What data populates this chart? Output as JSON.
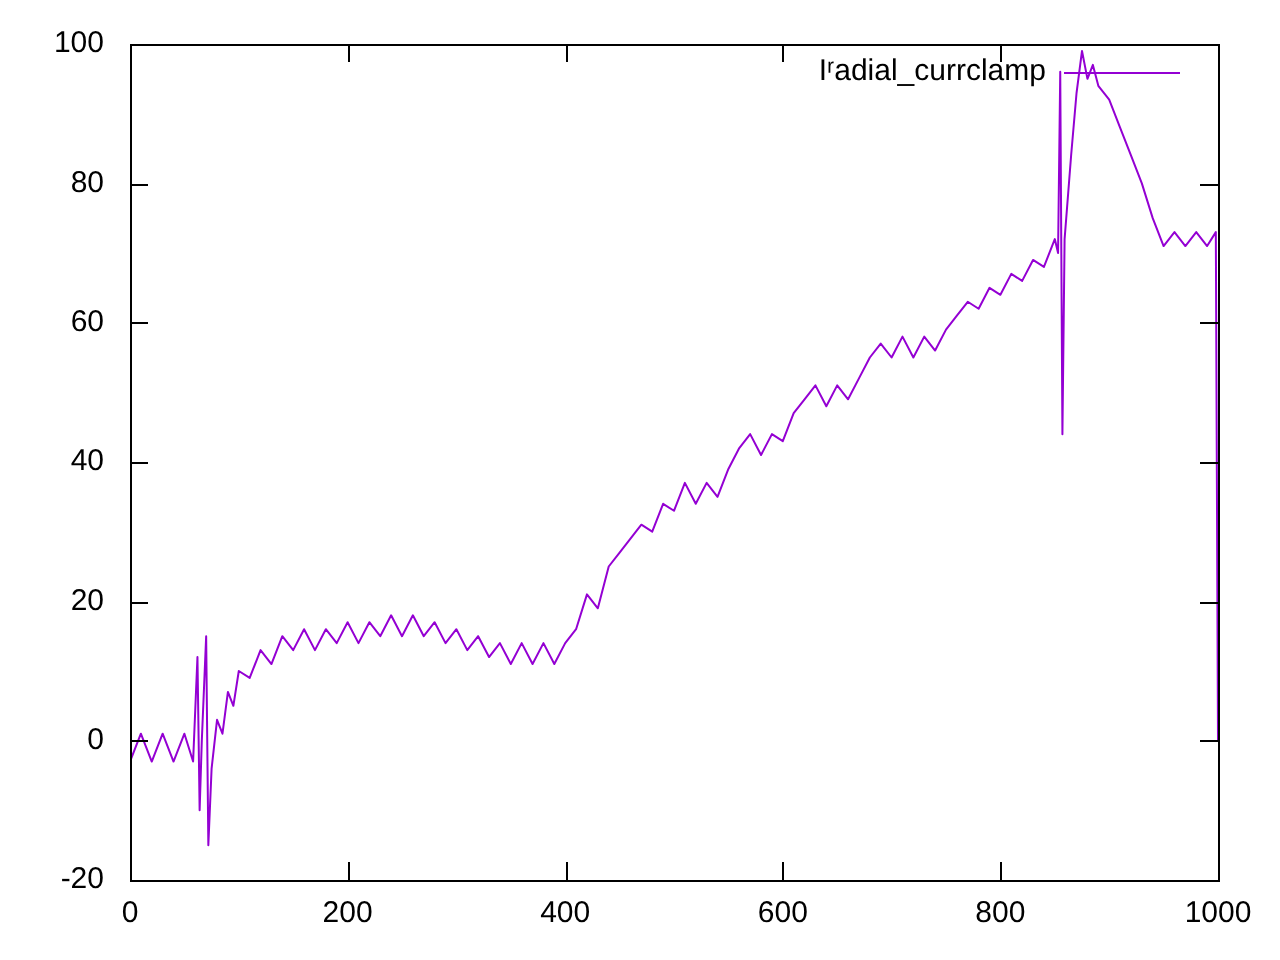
{
  "chart_data": {
    "type": "line",
    "xlim": [
      0,
      1000
    ],
    "xticks": [
      0,
      200,
      400,
      600,
      800,
      1000
    ],
    "ylim": [
      -20,
      100
    ],
    "yticks": [
      -20,
      0,
      20,
      40,
      60,
      80,
      100
    ],
    "grid": false,
    "legend": "top right",
    "marker": "none",
    "line_style": "solid",
    "series": [
      {
        "name": "Iʳadial_currclamp",
        "color": "#9400d3",
        "x": [
          0,
          10,
          20,
          30,
          40,
          50,
          58,
          62,
          64,
          66,
          70,
          72,
          75,
          80,
          85,
          90,
          95,
          100,
          110,
          120,
          130,
          140,
          150,
          160,
          170,
          180,
          190,
          200,
          210,
          220,
          230,
          240,
          250,
          260,
          270,
          280,
          290,
          300,
          310,
          320,
          330,
          340,
          350,
          360,
          370,
          380,
          390,
          400,
          410,
          420,
          430,
          440,
          450,
          460,
          470,
          480,
          490,
          500,
          510,
          520,
          530,
          540,
          550,
          560,
          570,
          580,
          590,
          600,
          610,
          620,
          630,
          640,
          650,
          660,
          670,
          680,
          690,
          700,
          710,
          720,
          730,
          740,
          750,
          760,
          770,
          780,
          790,
          800,
          810,
          820,
          830,
          840,
          850,
          853,
          855,
          857,
          859,
          865,
          870,
          875,
          880,
          885,
          890,
          900,
          910,
          920,
          930,
          940,
          950,
          960,
          970,
          980,
          990,
          998,
          1000
        ],
        "values": [
          -3,
          1,
          -3,
          1,
          -3,
          1,
          -3,
          12,
          -10,
          0,
          15,
          -15,
          -4,
          3,
          1,
          7,
          5,
          10,
          9,
          13,
          11,
          15,
          13,
          16,
          13,
          16,
          14,
          17,
          14,
          17,
          15,
          18,
          15,
          18,
          15,
          17,
          14,
          16,
          13,
          15,
          12,
          14,
          11,
          14,
          11,
          14,
          11,
          14,
          16,
          21,
          19,
          25,
          27,
          29,
          31,
          30,
          34,
          33,
          37,
          34,
          37,
          35,
          39,
          42,
          44,
          41,
          44,
          43,
          47,
          49,
          51,
          48,
          51,
          49,
          52,
          55,
          57,
          55,
          58,
          55,
          58,
          56,
          59,
          61,
          63,
          62,
          65,
          64,
          67,
          66,
          69,
          68,
          72,
          70,
          96,
          44,
          72,
          84,
          93,
          99,
          95,
          97,
          94,
          92,
          88,
          84,
          80,
          75,
          71,
          73,
          71,
          73,
          71,
          73,
          0
        ]
      }
    ]
  }
}
